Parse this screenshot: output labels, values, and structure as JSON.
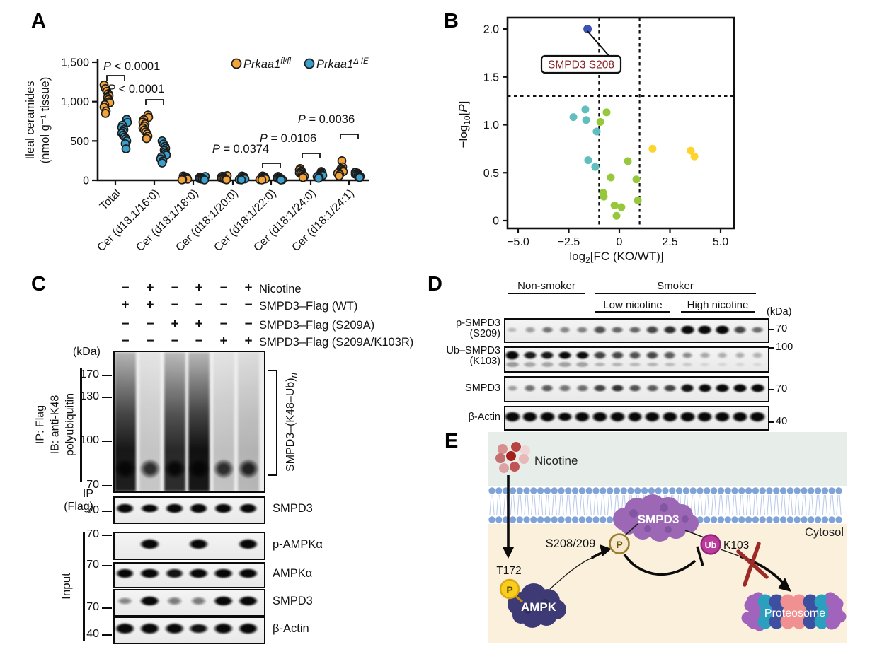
{
  "panels": {
    "a": "A",
    "b": "B",
    "c": "C",
    "d": "D",
    "e": "E"
  },
  "panelA": {
    "y_axis_title_line1": "Ileal ceramides",
    "y_axis_title_line2": "(nmol g⁻¹ tissue)",
    "legend": [
      {
        "name": "Prkaa1",
        "sup": "fl/fl",
        "color": "#F2A33A"
      },
      {
        "name": "Prkaa1",
        "sup": "Δ IE",
        "color": "#3B9FCB"
      }
    ],
    "chart_data": {
      "type": "scatter-grouped",
      "ylabel": "Ileal ceramides (nmol g⁻¹ tissue)",
      "ylim": [
        0,
        1500
      ],
      "yticks": [
        {
          "value": 0,
          "label": "0"
        },
        {
          "value": 500,
          "label": "500"
        },
        {
          "value": 1000,
          "label": "1,000"
        },
        {
          "value": 1500,
          "label": "1,500"
        }
      ],
      "categories": [
        "Total",
        "Cer (d18:1/16:0)",
        "Cer (d18:1/18:0)",
        "Cer (d18:1/20:0)",
        "Cer (d18:1/22:0)",
        "Cer (d18:1/24:0)",
        "Cer (d18:1/24:1)"
      ],
      "series": [
        {
          "name": "Prkaa1 fl/fl",
          "color": "#F2A33A",
          "values_by_category": [
            [
              1210,
              1165,
              1130,
              1100,
              1075,
              1050,
              1025,
              1000,
              985,
              960,
              930,
              880,
              850
            ],
            [
              830,
              800,
              770,
              740,
              715,
              690,
              665,
              640,
              615,
              590,
              560,
              530
            ],
            [
              55,
              47,
              40,
              34,
              28,
              23,
              18,
              14,
              10,
              6
            ],
            [
              60,
              52,
              45,
              38,
              32,
              26,
              21,
              16,
              11,
              7
            ],
            [
              55,
              47,
              40,
              34,
              28,
              23,
              18,
              13,
              9,
              5
            ],
            [
              150,
              132,
              118,
              106,
              95,
              85,
              75,
              64,
              52,
              35
            ],
            [
              248,
              170,
              150,
              136,
              122,
              110,
              99,
              88,
              74,
              55
            ]
          ]
        },
        {
          "name": "Prkaa1 Δ IE",
          "color": "#3B9FCB",
          "values_by_category": [
            [
              775,
              735,
              700,
              670,
              645,
              620,
              598,
              575,
              552,
              528,
              500,
              465,
              400
            ],
            [
              500,
              462,
              432,
              405,
              382,
              360,
              340,
              320,
              298,
              272,
              245,
              220
            ],
            [
              50,
              43,
              37,
              31,
              26,
              21,
              17,
              13,
              9,
              5
            ],
            [
              55,
              47,
              40,
              34,
              28,
              23,
              18,
              13,
              9,
              6
            ],
            [
              50,
              42,
              36,
              30,
              25,
              20,
              16,
              12,
              8,
              4
            ],
            [
              112,
              98,
              88,
              78,
              70,
              62,
              55,
              47,
              38,
              26
            ],
            [
              102,
              92,
              85,
              78,
              71,
              64,
              57,
              50,
              44,
              36
            ]
          ]
        }
      ],
      "significance": [
        {
          "category": "Total",
          "label": "P < 0.0001"
        },
        {
          "category": "Cer (d18:1/16:0)",
          "label": "P < 0.0001"
        },
        {
          "category": "Cer (d18:1/22:0)",
          "label": "P = 0.0374"
        },
        {
          "category": "Cer (d18:1/24:0)",
          "label": "P = 0.0106"
        },
        {
          "category": "Cer (d18:1/24:1)",
          "label": "P = 0.0036"
        }
      ]
    }
  },
  "panelB": {
    "callout_text": "SMPD3 S208",
    "callout_color": "#8B2020",
    "chart_data": {
      "type": "scatter",
      "xlabel": "log2[FC (KO/WT)]",
      "ylabel": "-log10[P]",
      "xlim": [
        -5.5,
        5.6
      ],
      "ylim": [
        -0.07,
        2.12
      ],
      "xticks": [
        {
          "value": -5,
          "label": "−5.0"
        },
        {
          "value": -2.5,
          "label": "−2.5"
        },
        {
          "value": 0,
          "label": "0"
        },
        {
          "value": 2.5,
          "label": "2.5"
        },
        {
          "value": 5,
          "label": "5.0"
        }
      ],
      "yticks": [
        {
          "value": 0,
          "label": "0"
        },
        {
          "value": 0.5,
          "label": "0.5"
        },
        {
          "value": 1,
          "label": "1.0"
        },
        {
          "value": 1.5,
          "label": "1.5"
        },
        {
          "value": 2,
          "label": "2.0"
        }
      ],
      "threshold_x": [
        -1,
        1
      ],
      "threshold_y": 1.3,
      "series": [
        {
          "name": "labelled",
          "color": "#3A53B4",
          "points": [
            [
              -1.57,
              2.0
            ]
          ]
        },
        {
          "name": "teal",
          "color": "#62BEBE",
          "points": [
            [
              -2.27,
              1.08
            ],
            [
              -1.68,
              1.16
            ],
            [
              -1.64,
              1.05
            ],
            [
              -1.12,
              0.93
            ],
            [
              -1.54,
              0.63
            ],
            [
              -1.19,
              0.56
            ]
          ]
        },
        {
          "name": "green",
          "color": "#97C83C",
          "points": [
            [
              -0.63,
              1.13
            ],
            [
              -0.94,
              1.03
            ],
            [
              -0.42,
              0.45
            ],
            [
              0.42,
              0.62
            ],
            [
              0.84,
              0.43
            ],
            [
              -0.8,
              0.29
            ],
            [
              -0.77,
              0.25
            ],
            [
              0.91,
              0.21
            ],
            [
              -0.24,
              0.16
            ],
            [
              0.1,
              0.14
            ],
            [
              -0.14,
              0.05
            ]
          ]
        },
        {
          "name": "yellow",
          "color": "#FFD32E",
          "points": [
            [
              1.64,
              0.75
            ],
            [
              3.53,
              0.73
            ],
            [
              3.71,
              0.67
            ]
          ]
        }
      ]
    }
  },
  "panelC": {
    "kda_label": "(kDa)",
    "condition_rows": [
      {
        "label": "Nicotine",
        "signs": [
          "−",
          "+",
          "−",
          "+",
          "−",
          "+"
        ]
      },
      {
        "label": "SMPD3–Flag (WT)",
        "signs": [
          "+",
          "+",
          "−",
          "−",
          "−",
          "−"
        ]
      },
      {
        "label": "SMPD3–Flag (S209A)",
        "signs": [
          "−",
          "−",
          "+",
          "+",
          "−",
          "−"
        ]
      },
      {
        "label": "SMPD3–Flag (S209A/K103R)",
        "signs": [
          "−",
          "−",
          "−",
          "−",
          "+",
          "+"
        ]
      }
    ],
    "ip_ib_line1": "IP: Flag",
    "ip_ib_line2": "IB: anti-K48",
    "ip_ib_line3": "polyubiquitin",
    "smear_markers": [
      "170",
      "130",
      "100",
      "70"
    ],
    "bracket_label_main": "SMPD3–(K48–Ub)",
    "bracket_label_sub": "n",
    "smear_lanes": [
      0.97,
      0.2,
      0.9,
      1,
      0.22,
      0.26
    ],
    "smear_bottom_band": [
      1,
      0.85,
      1,
      1,
      0.85,
      0.9
    ],
    "ip_flag_line1": "IP",
    "ip_flag_line2": "(Flag)",
    "ip_flag_marker": "70",
    "ip_flag_band_label": "SMPD3",
    "ip_flag_bands": [
      0.95,
      0.9,
      1,
      1,
      0.95,
      0.95
    ],
    "input_label": "Input",
    "input_strips": [
      {
        "marker": "70",
        "label": "p-AMPKα",
        "bands": [
          0,
          1,
          0,
          0.95,
          0,
          1
        ]
      },
      {
        "marker": "70",
        "label": "AMPKα",
        "bands": [
          0.9,
          1,
          0.85,
          1,
          0.95,
          1
        ]
      },
      {
        "marker": "70",
        "label": "SMPD3",
        "bands": [
          0.3,
          1,
          0.35,
          0.35,
          1,
          1
        ]
      },
      {
        "marker": "40",
        "label": "β-Actin",
        "bands": [
          1,
          1,
          0.9,
          0.85,
          0.9,
          1
        ]
      }
    ]
  },
  "panelD": {
    "kda_label": "(kDa)",
    "group_nonsmoker": "Non-smoker",
    "group_smoker": "Smoker",
    "group_low": "Low nicotine",
    "group_high": "High nicotine",
    "strips": [
      {
        "label_line1": "p-SMPD3",
        "label_line2": "(S209)",
        "marker": "70",
        "bands": [
          0.05,
          0.18,
          0.38,
          0.3,
          0.32,
          0.55,
          0.45,
          0.45,
          0.6,
          0.72,
          0.95,
          1,
          1,
          0.6,
          0.42
        ]
      },
      {
        "label_line1": "Ub–SMPD3",
        "label_line2": "(K103)",
        "marker": "100",
        "double": true,
        "bands": [
          1,
          0.8,
          0.82,
          0.9,
          0.88,
          0.62,
          0.6,
          0.55,
          0.6,
          0.5,
          0.28,
          0.15,
          0.12,
          0.12,
          0.1
        ]
      },
      {
        "label_line1": "SMPD3",
        "label_line2": "",
        "marker": "70",
        "bands": [
          0.18,
          0.4,
          0.5,
          0.38,
          0.42,
          0.62,
          0.7,
          0.55,
          0.5,
          0.62,
          0.85,
          0.9,
          0.92,
          0.95,
          1
        ]
      },
      {
        "label_line1": "β-Actin",
        "label_line2": "",
        "marker": "40",
        "bands": [
          1,
          0.95,
          0.92,
          0.9,
          0.92,
          0.95,
          0.95,
          0.92,
          0.95,
          0.95,
          1,
          0.95,
          0.95,
          0.92,
          1
        ]
      }
    ]
  },
  "panelE": {
    "nicotine_label": "Nicotine",
    "cytosol_label": "Cytosol",
    "t172_label": "T172",
    "s208_label": "S208/209",
    "k103_label": "K103",
    "p_label": "P",
    "ub_label": "Ub",
    "ampk_label": "AMPK",
    "smpd3_label": "SMPD3",
    "proteosome_label": "Proteosome",
    "colors": {
      "extracellular": "#E7EEEA",
      "cytosol_bg": "#FBF0DB",
      "membrane_dot": "#7FA3D6",
      "membrane_tail": "#BDCCEB",
      "ampk": "#3D3A76",
      "ampk_dark": "#32305F",
      "smpd3": "#9C68B6",
      "smpd3_dark": "#8356A3",
      "p_yellow": "#F9CD1C",
      "p_yellow_border": "#D9A511",
      "p_tan": "#F5E8CC",
      "p_tan_border": "#9B7B2F",
      "ub": "#BC3A9C",
      "ub_border": "#8F2377",
      "cross": "#9C2A26",
      "proteosome_purple": "#A163BC",
      "proteosome_teal": "#2B9FBE",
      "proteosome_blue": "#3D4FA0",
      "proteosome_salmon": "#F09090",
      "nicotine_dots": [
        "#D78F8F",
        "#B84343",
        "#EFD5D5",
        "#C47070",
        "#A61F1F",
        "#E7B9B9",
        "#DBA3A3",
        "#C05555"
      ]
    }
  }
}
